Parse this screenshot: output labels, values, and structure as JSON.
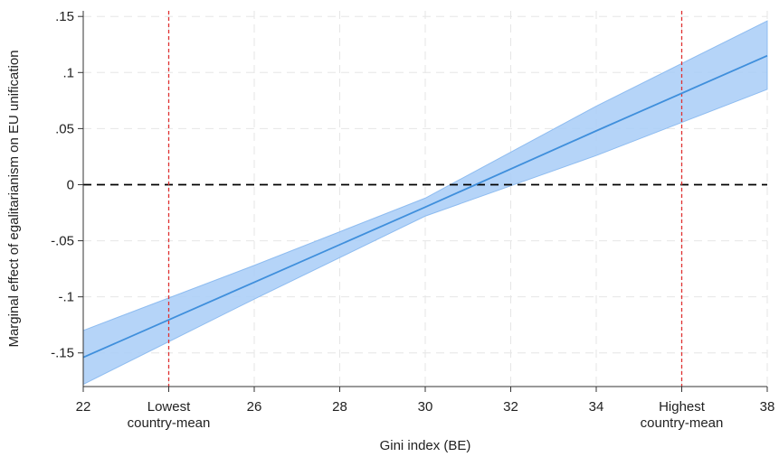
{
  "chart_data": {
    "type": "line",
    "xlabel": "Gini index (BE)",
    "ylabel": "Marginal effect of egalitarianism on EU unification",
    "xlim": [
      22,
      38
    ],
    "ylim": [
      -0.18,
      0.155
    ],
    "x_ticks": [
      {
        "value": 22,
        "label": "22"
      },
      {
        "value": 24,
        "label": "Lowest\ncountry-mean"
      },
      {
        "value": 26,
        "label": "26"
      },
      {
        "value": 28,
        "label": "28"
      },
      {
        "value": 30,
        "label": "30"
      },
      {
        "value": 32,
        "label": "32"
      },
      {
        "value": 34,
        "label": "34"
      },
      {
        "value": 36,
        "label": "Highest\ncountry-mean"
      },
      {
        "value": 38,
        "label": "38"
      }
    ],
    "y_ticks": [
      {
        "value": 0.15,
        "label": ".15"
      },
      {
        "value": 0.1,
        "label": ".1"
      },
      {
        "value": 0.05,
        "label": ".05"
      },
      {
        "value": 0,
        "label": "0"
      },
      {
        "value": -0.05,
        "label": "-.05"
      },
      {
        "value": -0.1,
        "label": "-.1"
      },
      {
        "value": -0.15,
        "label": "-.15"
      }
    ],
    "grid": true,
    "series": [
      {
        "x": [
          22,
          26,
          30,
          34,
          38
        ],
        "y": [
          -0.154,
          -0.087,
          -0.02,
          0.048,
          0.115
        ],
        "lower": [
          -0.178,
          -0.102,
          -0.028,
          0.026,
          0.085
        ],
        "upper": [
          -0.13,
          -0.072,
          -0.012,
          0.07,
          0.146
        ],
        "color": "#3f8fdc",
        "band_color": "#a8cdf7"
      }
    ],
    "reference_lines": [
      {
        "axis": "y",
        "value": 0,
        "style": "dashed",
        "color": "#000000"
      },
      {
        "axis": "x",
        "value": 24,
        "style": "dashed",
        "color": "#e03030"
      },
      {
        "axis": "x",
        "value": 36,
        "style": "dashed",
        "color": "#e03030"
      }
    ]
  }
}
